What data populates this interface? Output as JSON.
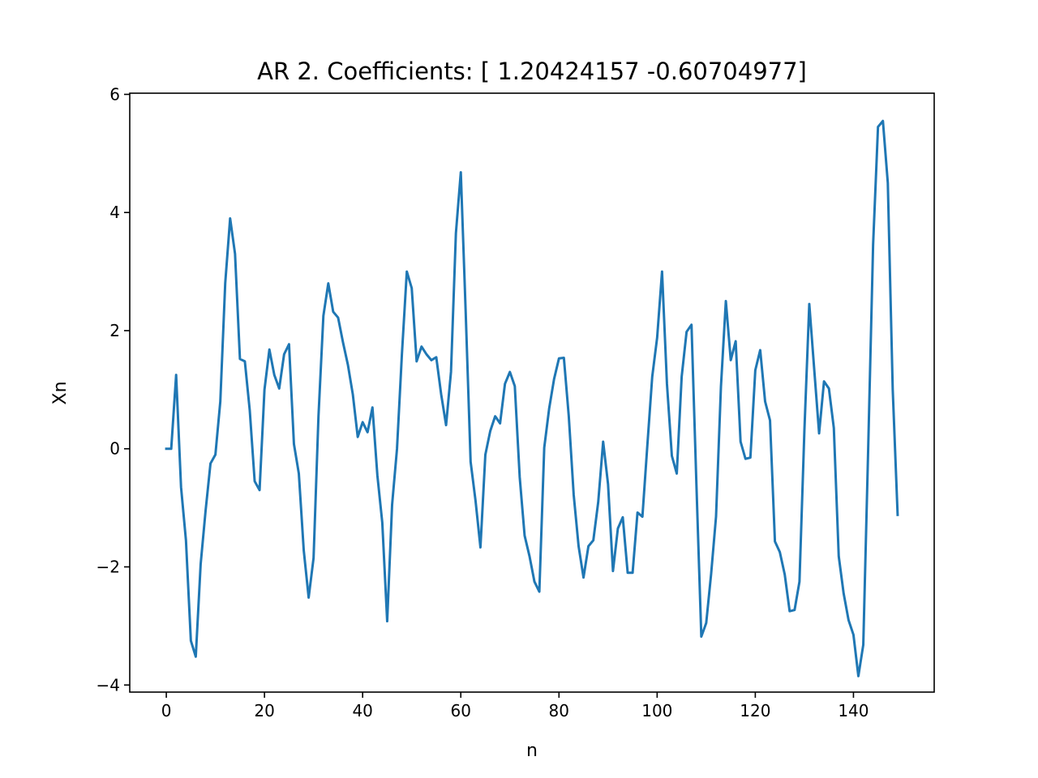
{
  "chart_data": {
    "type": "line",
    "title": "AR 2. Coefficients: [ 1.20424157 -0.60704977]",
    "xlabel": "n",
    "ylabel": "Xn",
    "xlim": [
      -7.45,
      156.45
    ],
    "ylim": [
      -4.12,
      6.02
    ],
    "xticks": [
      0,
      20,
      40,
      60,
      80,
      100,
      120,
      140
    ],
    "xtick_labels": [
      "0",
      "20",
      "40",
      "60",
      "80",
      "100",
      "120",
      "140"
    ],
    "yticks": [
      -4,
      -2,
      0,
      2,
      4,
      6
    ],
    "ytick_labels": [
      "−4",
      "−2",
      "0",
      "2",
      "4",
      "6"
    ],
    "grid": false,
    "legend": "none",
    "series": [
      {
        "color": "#1f77b4",
        "x_start": 0,
        "x_step": 1,
        "values": [
          0.0,
          0.0,
          1.25,
          -0.65,
          -1.55,
          -3.25,
          -3.52,
          -1.95,
          -1.05,
          -0.25,
          -0.1,
          0.8,
          2.8,
          3.9,
          3.3,
          1.52,
          1.48,
          0.65,
          -0.55,
          -0.7,
          1.0,
          1.68,
          1.25,
          1.02,
          1.6,
          1.77,
          0.08,
          -0.42,
          -1.72,
          -2.52,
          -1.85,
          0.55,
          2.25,
          2.8,
          2.32,
          2.22,
          1.8,
          1.42,
          0.92,
          0.2,
          0.45,
          0.28,
          0.7,
          -0.45,
          -1.25,
          -2.92,
          -0.95,
          0.0,
          1.6,
          3.0,
          2.72,
          1.48,
          1.73,
          1.6,
          1.5,
          1.55,
          0.92,
          0.4,
          1.3,
          3.65,
          4.68,
          2.3,
          -0.22,
          -0.88,
          -1.67,
          -0.1,
          0.3,
          0.55,
          0.43,
          1.1,
          1.3,
          1.06,
          -0.48,
          -1.47,
          -1.82,
          -2.25,
          -2.42,
          0.02,
          0.68,
          1.18,
          1.53,
          1.54,
          0.55,
          -0.78,
          -1.65,
          -2.18,
          -1.65,
          -1.55,
          -0.9,
          0.12,
          -0.6,
          -2.07,
          -1.35,
          -1.16,
          -2.1,
          -2.1,
          -1.08,
          -1.15,
          0.05,
          1.22,
          1.88,
          3.0,
          1.1,
          -0.12,
          -0.42,
          1.22,
          1.98,
          2.1,
          -0.6,
          -3.18,
          -2.95,
          -2.12,
          -1.15,
          1.05,
          2.5,
          1.5,
          1.82,
          0.12,
          -0.17,
          -0.15,
          1.33,
          1.67,
          0.8,
          0.48,
          -1.57,
          -1.75,
          -2.13,
          -2.75,
          -2.73,
          -2.25,
          0.3,
          2.45,
          1.35,
          0.26,
          1.14,
          1.02,
          0.35,
          -1.82,
          -2.45,
          -2.9,
          -3.15,
          -3.85,
          -3.32,
          0.0,
          3.45,
          5.45,
          5.55,
          4.5,
          1.0,
          -1.12
        ]
      }
    ]
  }
}
